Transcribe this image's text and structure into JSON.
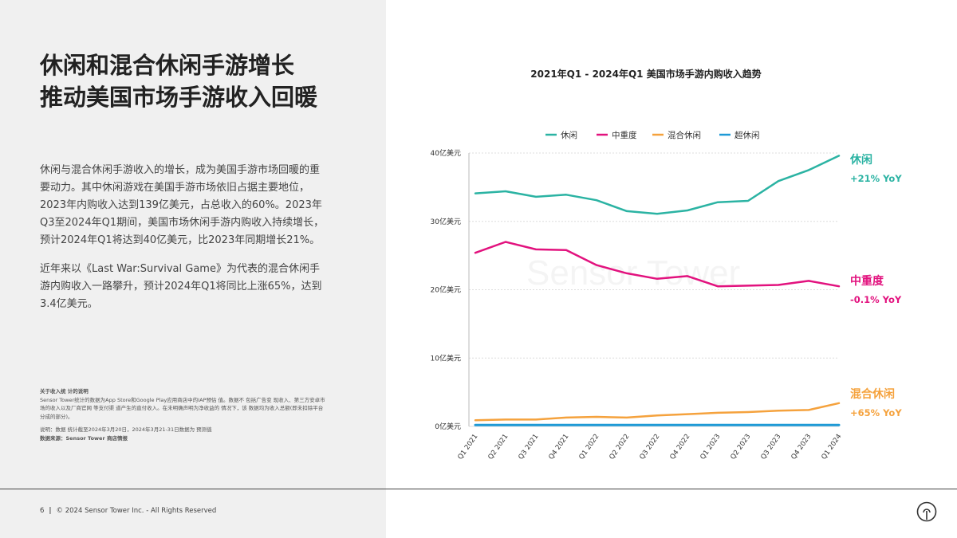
{
  "slide": {
    "title_lines": [
      "休闲和混合休闲手游增长",
      "推动美国市场手游收入回暖"
    ],
    "paragraphs": [
      "休闲与混合休闲手游收入的增长，成为美国手游市场回暖的重要动力。其中休闲游戏在美国手游市场依旧占据主要地位，2023年内购收入达到139亿美元，占总收入的60%。2023年Q3至2024年Q1期间，美国市场休闲手游内购收入持续增长，预计2024年Q1将达到40亿美元，比2023年同期增长21%。",
      "近年来以《Last War:Survival Game》为代表的混合休闲手游内购收入一路攀升，预计2024年Q1将同比上涨65%，达到3.4亿美元。"
    ],
    "notes": {
      "heading": "关于收入统 计的说明",
      "body": "Sensor Tower统计的数据为App Store和Google Play应用商店中的IAP预估 值。数据不 包括广告变 现收入、第三方安卓市场的收入以及厂商官网 等支付渠 道产生的直付收入。在未明确声明为净收益的 情况下，该 数据均为收入总额(即未扣除平台分成的部分)。",
      "explain": "说明：数据 统计截至2024年3月20日，2024年3月21-31日数据为 预测值",
      "source": "数据来源：Sensor Tower 商店情报"
    },
    "footer": {
      "page_number": "6",
      "separator": "|",
      "copyright": "© 2024 Sensor Tower Inc. - All Rights Reserved"
    },
    "watermark": "Sensor Tower",
    "logo_icon": "sensor-tower-logo-icon"
  },
  "chart_data": {
    "type": "line",
    "title": "2021年Q1 - 2024年Q1 美国市场手游内购收入趋势",
    "categories": [
      "Q1 2021",
      "Q2 2021",
      "Q3 2021",
      "Q4 2021",
      "Q1 2022",
      "Q2 2022",
      "Q3 2022",
      "Q4 2022",
      "Q1 2023",
      "Q2 2023",
      "Q3 2023",
      "Q4 2023",
      "Q1 2024"
    ],
    "y_tick_labels": [
      "0亿美元",
      "10亿美元",
      "20亿美元",
      "30亿美元",
      "40亿美元"
    ],
    "ylim": [
      0,
      40
    ],
    "yticks": [
      0,
      10,
      20,
      30,
      40
    ],
    "legend_position": "top",
    "gridlines": true,
    "series": [
      {
        "name": "休闲",
        "color": "#2bb3a3",
        "label": "休闲",
        "yoy": "+21% YoY",
        "values": [
          34.1,
          34.4,
          33.6,
          33.9,
          33.1,
          31.5,
          31.1,
          31.6,
          32.8,
          33.0,
          35.9,
          37.5,
          39.6
        ]
      },
      {
        "name": "中重度",
        "color": "#e2127e",
        "label": "中重度",
        "yoy": "-0.1% YoY",
        "values": [
          25.4,
          27.0,
          25.9,
          25.8,
          23.6,
          22.4,
          21.6,
          22.0,
          20.5,
          20.6,
          20.7,
          21.3,
          20.5
        ]
      },
      {
        "name": "混合休闲",
        "color": "#f5a23d",
        "label": "混合休闲",
        "yoy": "+65% YoY",
        "values": [
          0.9,
          1.0,
          1.0,
          1.3,
          1.4,
          1.3,
          1.6,
          1.8,
          2.0,
          2.1,
          2.3,
          2.4,
          3.4
        ]
      },
      {
        "name": "超休闲",
        "color": "#1e9ad6",
        "label": "超休闲",
        "yoy": "",
        "values": [
          0.2,
          0.2,
          0.2,
          0.2,
          0.2,
          0.2,
          0.2,
          0.2,
          0.2,
          0.2,
          0.2,
          0.2,
          0.2
        ]
      }
    ]
  }
}
